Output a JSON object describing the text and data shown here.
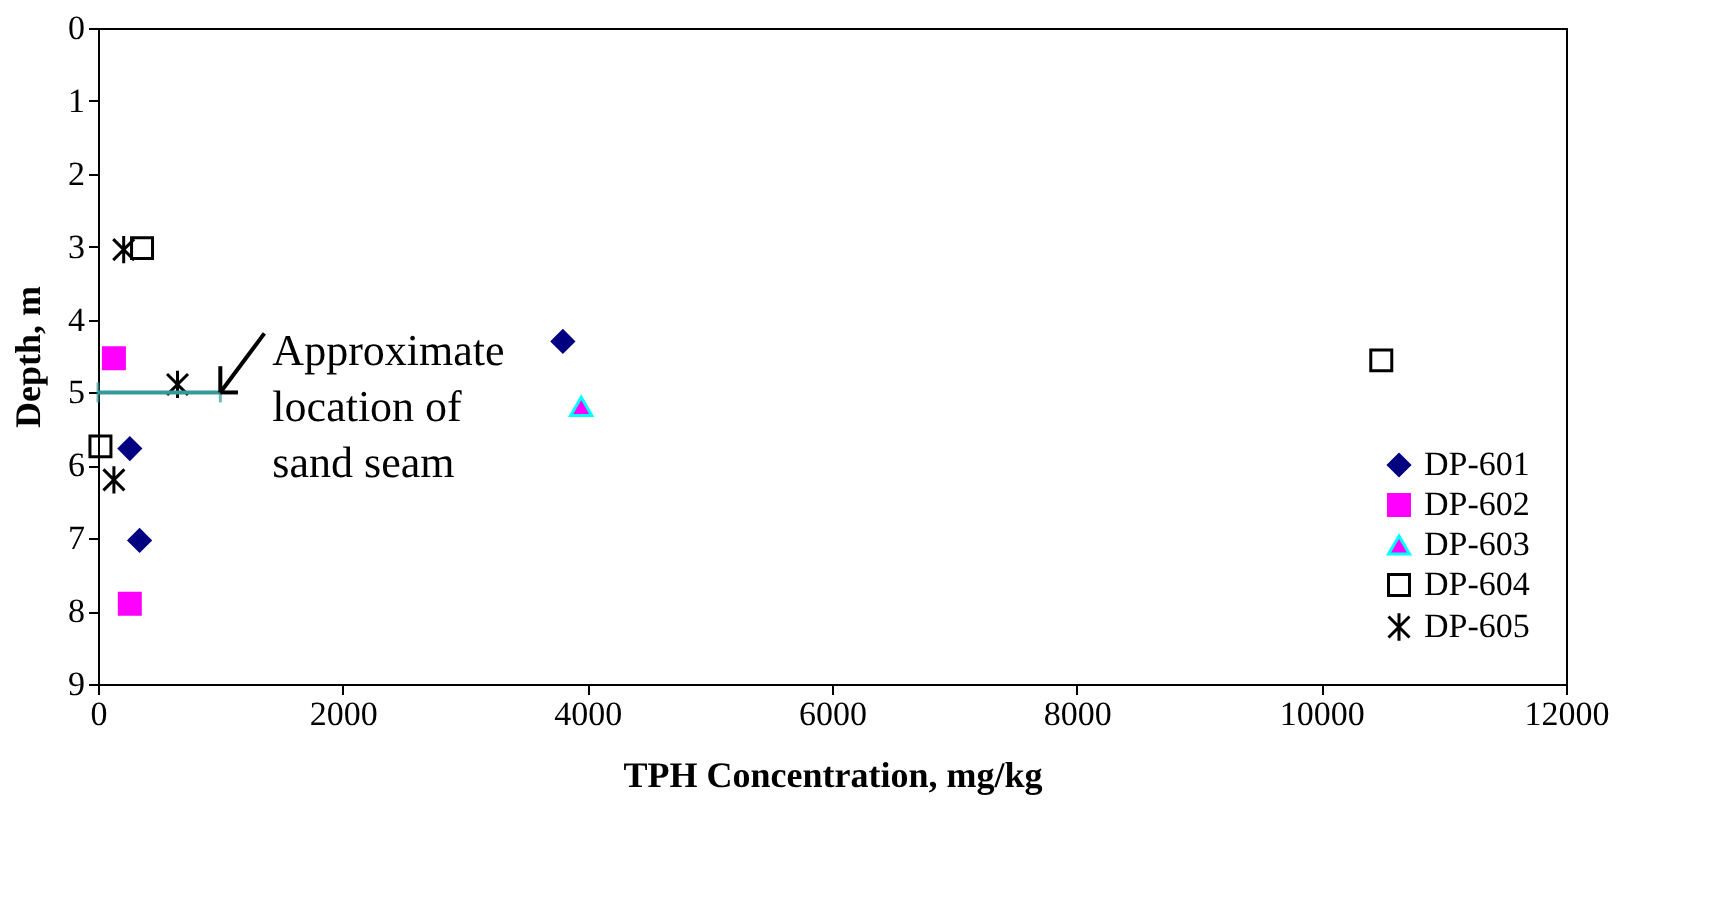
{
  "chart_data": {
    "type": "scatter",
    "xlabel": "TPH Concentration, mg/kg",
    "ylabel": "Depth, m",
    "xlim": [
      0,
      12000
    ],
    "xticks": [
      0,
      2000,
      4000,
      6000,
      8000,
      10000,
      12000
    ],
    "ylim": [
      9,
      0
    ],
    "yticks": [
      0,
      1,
      2,
      3,
      4,
      5,
      6,
      7,
      8,
      9
    ],
    "grid": false,
    "legend": "bottom right",
    "series": [
      {
        "name": "DP-601",
        "color": "#000080",
        "marker": "diamond",
        "x": [
          3800,
          260,
          340
        ],
        "values": [
          4.3,
          5.77,
          7.03
        ]
      },
      {
        "name": "DP-602",
        "color": "#ff00ff",
        "marker": "square",
        "x": [
          130,
          260
        ],
        "values": [
          4.53,
          7.9
        ]
      },
      {
        "name": "DP-603",
        "color": "#ff00ff",
        "marker": "triangle",
        "x": [
          3950
        ],
        "values": [
          5.19
        ]
      },
      {
        "name": "DP-604",
        "color": "#000000",
        "marker": "square_open",
        "x": [
          360,
          20,
          10490
        ],
        "values": [
          3.02,
          5.74,
          4.56
        ]
      },
      {
        "name": "DP-605",
        "color": "#000000",
        "marker": "cross",
        "x": [
          210,
          650,
          130
        ],
        "values": [
          3.04,
          4.89,
          6.2
        ]
      },
      {
        "type": "line",
        "color": "#339999",
        "x": [
          0,
          1000
        ],
        "values": [
          5,
          5
        ]
      }
    ],
    "annotations": [
      {
        "text": "Approximate\nlocation of\nsand seam",
        "x": 1000,
        "y": 5
      }
    ]
  }
}
